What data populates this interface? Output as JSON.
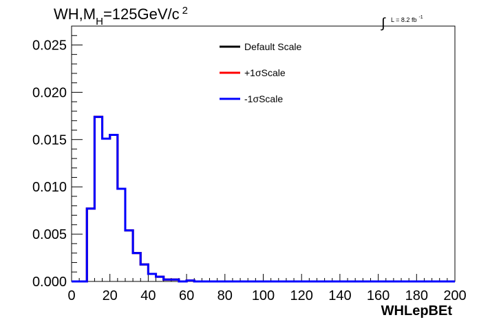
{
  "chart_data": {
    "type": "line",
    "title": {
      "main": "WH,M",
      "subscript": "H",
      "rest": "=125GeV/c",
      "superscript": "2"
    },
    "lumi": {
      "integral": "∫",
      "text": "L = 8.2 fb",
      "superscript": "-1"
    },
    "xlabel": "WHLepBEt",
    "ylabel": "",
    "xlim": [
      0,
      200
    ],
    "ylim": [
      0,
      0.027
    ],
    "grid": false,
    "legend_position": "top-center",
    "x_ticks": [
      "0",
      "20",
      "40",
      "60",
      "80",
      "100",
      "120",
      "140",
      "160",
      "180",
      "200"
    ],
    "y_ticks": [
      "0.000",
      "0.005",
      "0.010",
      "0.015",
      "0.020",
      "0.025"
    ],
    "bin_edges": [
      0,
      4,
      8,
      12,
      16,
      20,
      24,
      28,
      32,
      36,
      40,
      44,
      48,
      52,
      56,
      60,
      64,
      68,
      72,
      200
    ],
    "series": [
      {
        "name": "Default Scale",
        "color": "#000000",
        "values": [
          0,
          0,
          0.0077,
          0.0174,
          0.0151,
          0.0155,
          0.0098,
          0.0054,
          0.003,
          0.0018,
          0.0008,
          0.0005,
          0.0002,
          0.0002,
          0,
          0.0001,
          0,
          0,
          0
        ]
      },
      {
        "name": "+1σScale",
        "color": "#ff0000",
        "values": [
          0,
          0,
          0.0077,
          0.0174,
          0.0151,
          0.0155,
          0.0098,
          0.0054,
          0.003,
          0.0018,
          0.0008,
          0.0005,
          0.0002,
          0.0002,
          0,
          0.0001,
          0,
          0,
          0
        ]
      },
      {
        "name": "-1σScale",
        "color": "#0000ff",
        "values": [
          0,
          0,
          0.0077,
          0.0174,
          0.0151,
          0.0155,
          0.0098,
          0.0054,
          0.003,
          0.0018,
          0.0008,
          0.0005,
          0.0002,
          0.0002,
          0,
          0.0001,
          0,
          0,
          0
        ]
      }
    ]
  }
}
